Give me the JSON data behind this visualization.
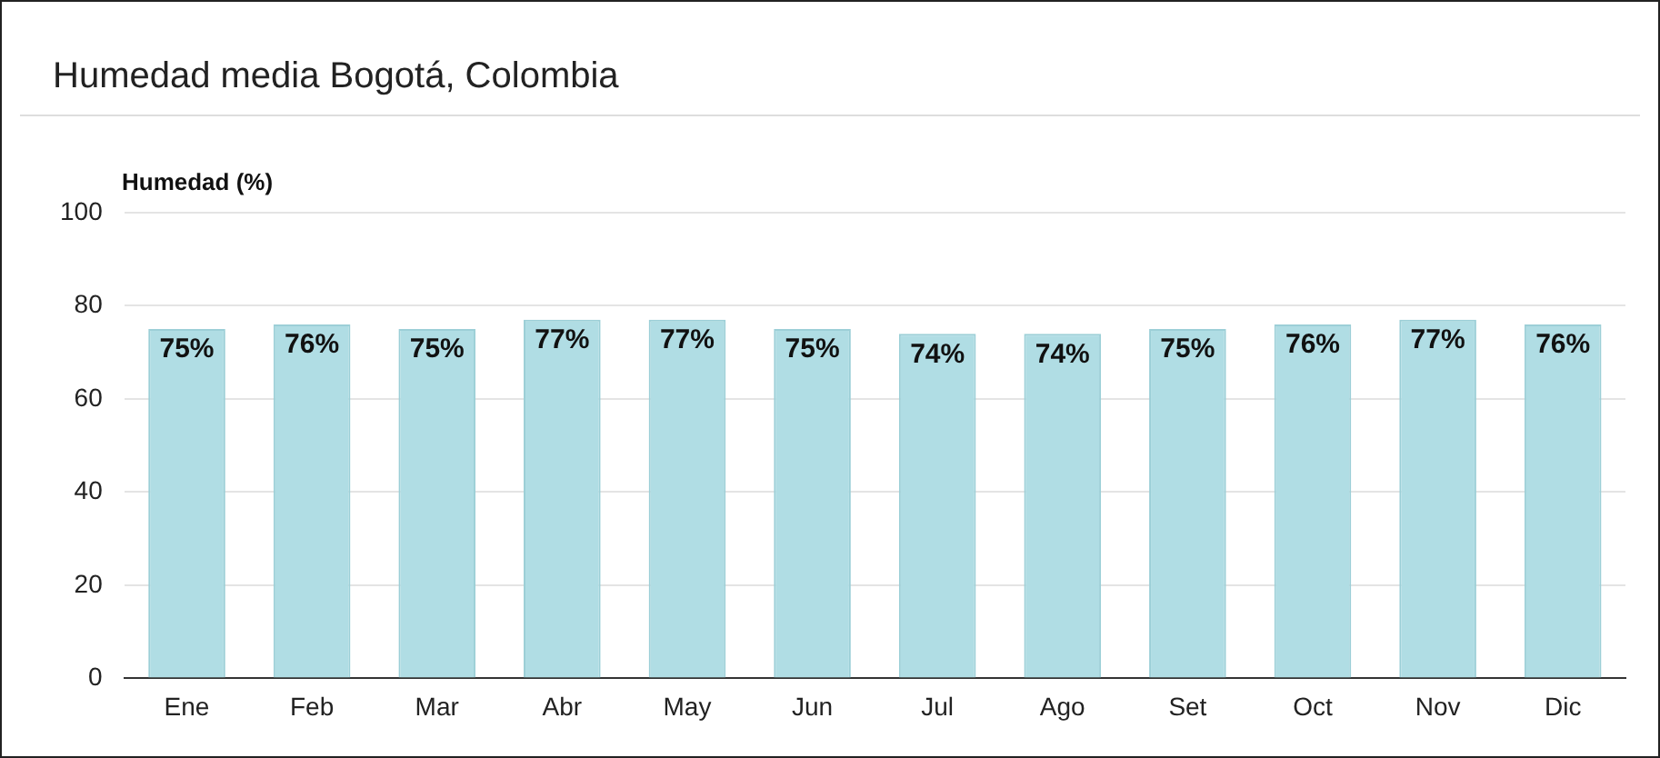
{
  "chart_data": {
    "type": "bar",
    "title": "Humedad media Bogotá, Colombia",
    "ylabel": "Humedad (%)",
    "categories": [
      "Ene",
      "Feb",
      "Mar",
      "Abr",
      "May",
      "Jun",
      "Jul",
      "Ago",
      "Set",
      "Oct",
      "Nov",
      "Dic"
    ],
    "values": [
      75,
      76,
      75,
      77,
      77,
      75,
      74,
      74,
      75,
      76,
      77,
      76
    ],
    "value_labels": [
      "75%",
      "76%",
      "75%",
      "77%",
      "77%",
      "75%",
      "74%",
      "74%",
      "75%",
      "76%",
      "77%",
      "76%"
    ],
    "color": "#b0dde4",
    "ylim": [
      0,
      100
    ],
    "yticks": [
      0,
      20,
      40,
      60,
      80,
      100
    ],
    "grid": "y",
    "legend": false
  }
}
